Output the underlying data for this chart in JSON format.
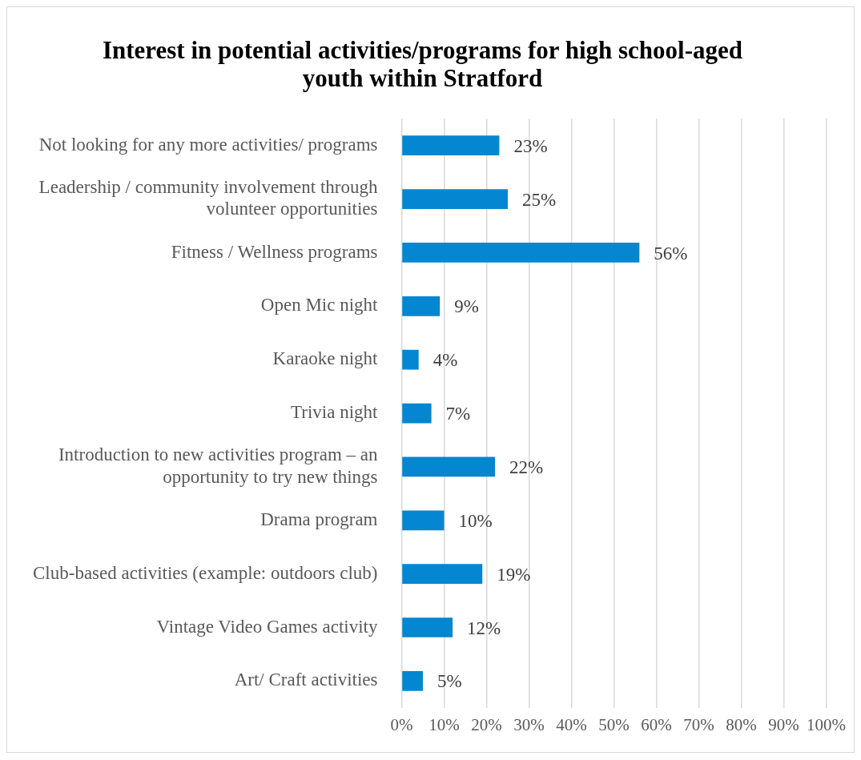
{
  "chart_data": {
    "type": "bar",
    "orientation": "horizontal",
    "title": "Interest in potential activities/programs for high school-aged youth within Stratford",
    "categories": [
      "Not looking for any more activities/ programs",
      "Leadership / community involvement through volunteer opportunities",
      "Fitness / Wellness programs",
      "Open Mic night",
      "Karaoke night",
      "Trivia night",
      "Introduction to new activities program – an opportunity to try new things",
      "Drama program",
      "Club-based activities (example: outdoors club)",
      "Vintage Video Games activity",
      "Art/ Craft activities"
    ],
    "values": [
      23,
      25,
      56,
      9,
      4,
      7,
      22,
      10,
      19,
      12,
      5
    ],
    "value_labels": [
      "23%",
      "25%",
      "56%",
      "9%",
      "4%",
      "7%",
      "22%",
      "10%",
      "19%",
      "12%",
      "5%"
    ],
    "color": "#0586d0",
    "xlim": [
      0,
      100
    ],
    "xticks": [
      {
        "value": 0,
        "label": "0%"
      },
      {
        "value": 10,
        "label": "10%"
      },
      {
        "value": 20,
        "label": "20%"
      },
      {
        "value": 30,
        "label": "30%"
      },
      {
        "value": 40,
        "label": "40%"
      },
      {
        "value": 50,
        "label": "50%"
      },
      {
        "value": 60,
        "label": "60%"
      },
      {
        "value": 70,
        "label": "70%"
      },
      {
        "value": 80,
        "label": "80%"
      },
      {
        "value": 90,
        "label": "90%"
      },
      {
        "value": 100,
        "label": "100%"
      }
    ],
    "grid": "x",
    "legend": false
  }
}
